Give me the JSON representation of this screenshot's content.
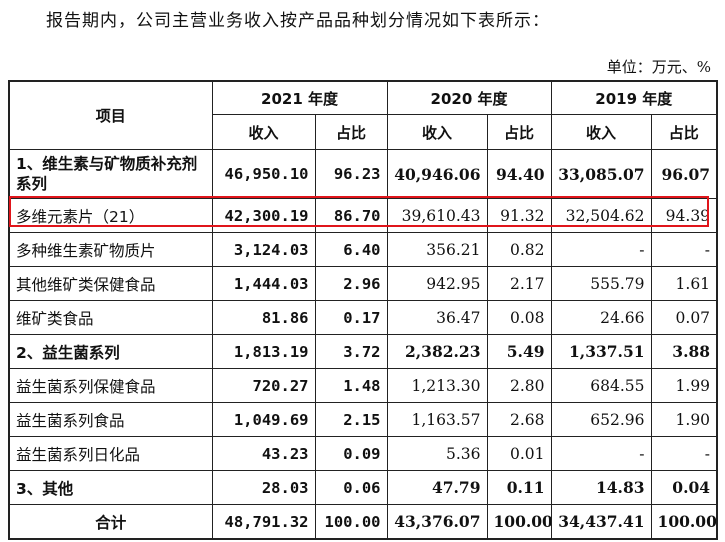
{
  "intro": "报告期内，公司主营业务收入按产品品种划分情况如下表所示：",
  "unit": "单位：万元、%",
  "header": {
    "item": "项目",
    "years": [
      "2021 年度",
      "2020 年度",
      "2019 年度"
    ],
    "revenue": "收入",
    "share": "占比"
  },
  "rows": [
    {
      "name": "1、维生素与矿物质补充剂系列",
      "v": [
        "46,950.10",
        "96.23",
        "40,946.06",
        "94.40",
        "33,085.07",
        "96.07"
      ]
    },
    {
      "name": "多维元素片（21）",
      "v": [
        "42,300.19",
        "86.70",
        "39,610.43",
        "91.32",
        "32,504.62",
        "94.39"
      ]
    },
    {
      "name": "多种维生素矿物质片",
      "v": [
        "3,124.03",
        "6.40",
        "356.21",
        "0.82",
        "-",
        "-"
      ]
    },
    {
      "name": "其他维矿类保健食品",
      "v": [
        "1,444.03",
        "2.96",
        "942.95",
        "2.17",
        "555.79",
        "1.61"
      ]
    },
    {
      "name": "维矿类食品",
      "v": [
        "81.86",
        "0.17",
        "36.47",
        "0.08",
        "24.66",
        "0.07"
      ]
    },
    {
      "name": "2、益生菌系列",
      "v": [
        "1,813.19",
        "3.72",
        "2,382.23",
        "5.49",
        "1,337.51",
        "3.88"
      ]
    },
    {
      "name": "益生菌系列保健食品",
      "v": [
        "720.27",
        "1.48",
        "1,213.30",
        "2.80",
        "684.55",
        "1.99"
      ]
    },
    {
      "name": "益生菌系列食品",
      "v": [
        "1,049.69",
        "2.15",
        "1,163.57",
        "2.68",
        "652.96",
        "1.90"
      ]
    },
    {
      "name": "益生菌系列日化品",
      "v": [
        "43.23",
        "0.09",
        "5.36",
        "0.01",
        "-",
        "-"
      ]
    },
    {
      "name": "3、其他",
      "v": [
        "28.03",
        "0.06",
        "47.79",
        "0.11",
        "14.83",
        "0.04"
      ]
    },
    {
      "name": "合计",
      "v": [
        "48,791.32",
        "100.00",
        "43,376.07",
        "100.00",
        "34,437.41",
        "100.00"
      ]
    }
  ],
  "colors": {
    "highlight_box": "#e0151b"
  }
}
